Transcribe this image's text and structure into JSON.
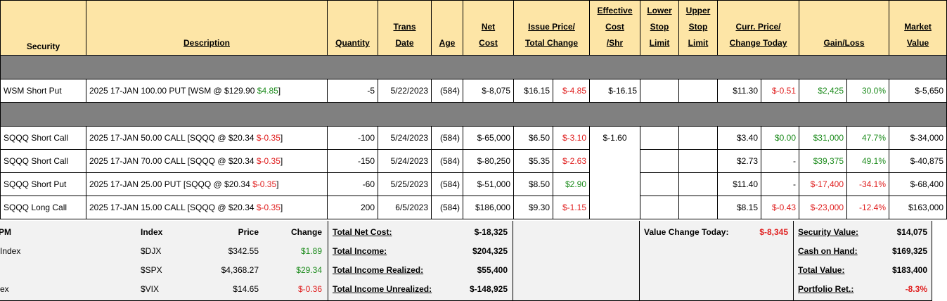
{
  "headers": {
    "security": "Security",
    "description": "Description",
    "quantity": "Quantity",
    "trans_date_1": "Trans",
    "trans_date_2": "Date",
    "age": "Age",
    "net_cost_1": "Net",
    "net_cost_2": "Cost",
    "issue_price_1": "Issue Price/",
    "issue_price_2": "Total Change",
    "eff_cost_1": "Effective",
    "eff_cost_2": "Cost",
    "eff_cost_3": "/Shr",
    "lower_stop_1": "Lower",
    "lower_stop_2": "Stop",
    "lower_stop_3": "Limit",
    "upper_stop_1": "Upper",
    "upper_stop_2": "Stop",
    "upper_stop_3": "Limit",
    "curr_price_1": "Curr. Price/",
    "curr_price_2": "Change Today",
    "gain_loss": "Gain/Loss",
    "market_value_1": "Market",
    "market_value_2": "Value"
  },
  "wsm": {
    "security": "WSM Short Put",
    "desc": "2025 17-JAN 100.00 PUT [WSM @ $129.90 ",
    "desc_chg": "$4.85",
    "desc_end": "]",
    "quantity": "-5",
    "date": "5/22/2023",
    "age": "(584)",
    "net_cost": "$-8,075",
    "issue_price": "$16.15",
    "total_change": "$-4.85",
    "eff_cost": "$-16.15",
    "curr_price": "$11.30",
    "change_today": "$-0.51",
    "gain": "$2,425",
    "gain_pct": "30.0%",
    "market_value": "$-5,650"
  },
  "sqqq_eff_cost": "$-1.60",
  "sqqq_rows": [
    {
      "security": "SQQQ Short Call",
      "desc": "2025 17-JAN 50.00 CALL [SQQQ @ $20.34 ",
      "desc_chg": "$-0.35",
      "desc_end": "]",
      "quantity": "-100",
      "date": "5/24/2023",
      "age": "(584)",
      "net_cost": "$-65,000",
      "issue_price": "$6.50",
      "total_change": "$-3.10",
      "curr_price": "$3.40",
      "change_today": "$0.00",
      "gain": "$31,000",
      "gain_pct": "47.7%",
      "market_value": "$-34,000"
    },
    {
      "security": "SQQQ Short Call",
      "desc": "2025 17-JAN 70.00 CALL [SQQQ @ $20.34 ",
      "desc_chg": "$-0.35",
      "desc_end": "]",
      "quantity": "-150",
      "date": "5/24/2023",
      "age": "(584)",
      "net_cost": "$-80,250",
      "issue_price": "$5.35",
      "total_change": "$-2.63",
      "curr_price": "$2.73",
      "change_today": "-",
      "gain": "$39,375",
      "gain_pct": "49.1%",
      "market_value": "$-40,875"
    },
    {
      "security": "SQQQ Short Put",
      "desc": "2025 17-JAN 25.00 PUT [SQQQ @ $20.34 ",
      "desc_chg": "$-0.35",
      "desc_end": "]",
      "quantity": "-60",
      "date": "5/25/2023",
      "age": "(584)",
      "net_cost": "$-51,000",
      "issue_price": "$8.50",
      "total_change": "$2.90",
      "curr_price": "$11.40",
      "change_today": "-",
      "gain": "$-17,400",
      "gain_pct": "-34.1%",
      "market_value": "$-68,400"
    },
    {
      "security": "SQQQ Long Call",
      "desc": "2025 17-JAN 15.00 CALL [SQQQ @ $20.34 ",
      "desc_chg": "$-0.35",
      "desc_end": "]",
      "quantity": "200",
      "date": "6/5/2023",
      "age": "(584)",
      "net_cost": "$186,000",
      "issue_price": "$9.30",
      "total_change": "$-1.15",
      "curr_price": "$8.15",
      "change_today": "$-0.43",
      "gain": "$-23,000",
      "gain_pct": "-12.4%",
      "market_value": "$163,000"
    }
  ],
  "index_table": {
    "col_name": "PM",
    "col_index": "Index",
    "col_price": "Price",
    "col_change": "Change",
    "rows": [
      {
        "name": " Index",
        "symbol": "$DJX",
        "price": "$342.55",
        "change": "$1.89"
      },
      {
        "name": "",
        "symbol": "$SPX",
        "price": "$4,368.27",
        "change": "$29.34"
      },
      {
        "name": "ex",
        "symbol": "$VIX",
        "price": "$14.65",
        "change": "$-0.36"
      }
    ]
  },
  "totals": {
    "net_cost_label": "Total Net Cost:",
    "net_cost": "$-18,325",
    "income_label": "Total Income:",
    "income": "$204,325",
    "realized_label": "Total Income Realized:",
    "realized": "$55,400",
    "unrealized_label": "Total Income Unrealized:",
    "unrealized": "$-148,925"
  },
  "value_change": {
    "label": "Value Change Today:",
    "value": "$-8,345"
  },
  "portfolio": {
    "security_label": "Security Value:",
    "security": "$14,075",
    "cash_label": "Cash on Hand:",
    "cash": "$169,325",
    "total_label": "Total Value:",
    "total": "$183,400",
    "ret_label": "Portfolio Ret.:",
    "ret": "-8.3%"
  },
  "colors": {
    "header_bg": "#fde5a6",
    "separator": "#808080",
    "gain": "#1e8c1e",
    "loss": "#e02020",
    "summary_bg": "#f2f2f2"
  }
}
